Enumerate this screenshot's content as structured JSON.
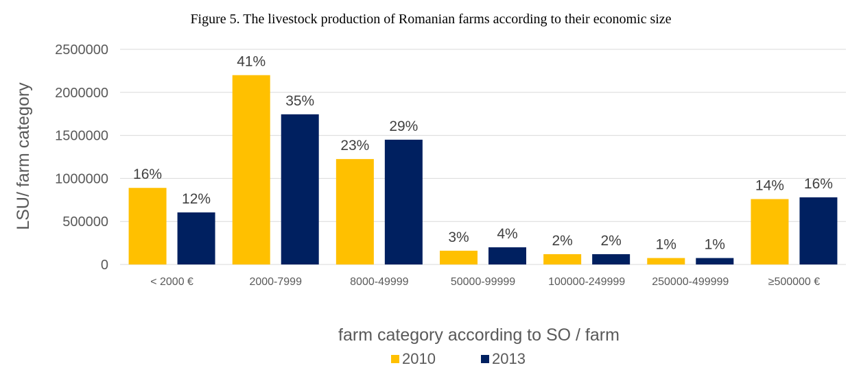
{
  "chart_data": {
    "type": "bar",
    "title": "Figure 5. The livestock production of Romanian farms according to their economic size",
    "xlabel": "farm category according to SO / farm",
    "ylabel": "LSU/ farm category",
    "ylim": [
      0,
      2500000
    ],
    "yticks": [
      "0",
      "500000",
      "1000000",
      "1500000",
      "2000000",
      "2500000"
    ],
    "categories": [
      "< 2000 €",
      "2000-7999",
      "8000-49999",
      "50000-99999",
      "100000-249999",
      "250000-499999",
      "≥500000  €"
    ],
    "series": [
      {
        "name": "2010",
        "color": "#FFC000",
        "values": [
          890000,
          2200000,
          1225000,
          160000,
          120000,
          75000,
          760000
        ],
        "labels": [
          "16%",
          "41%",
          "23%",
          "3%",
          "2%",
          "1%",
          "14%"
        ]
      },
      {
        "name": "2013",
        "color": "#002060",
        "values": [
          605000,
          1745000,
          1450000,
          200000,
          120000,
          75000,
          780000
        ],
        "labels": [
          "12%",
          "35%",
          "29%",
          "4%",
          "2%",
          "1%",
          "16%"
        ]
      }
    ],
    "grid": true,
    "legend_position": "bottom"
  }
}
